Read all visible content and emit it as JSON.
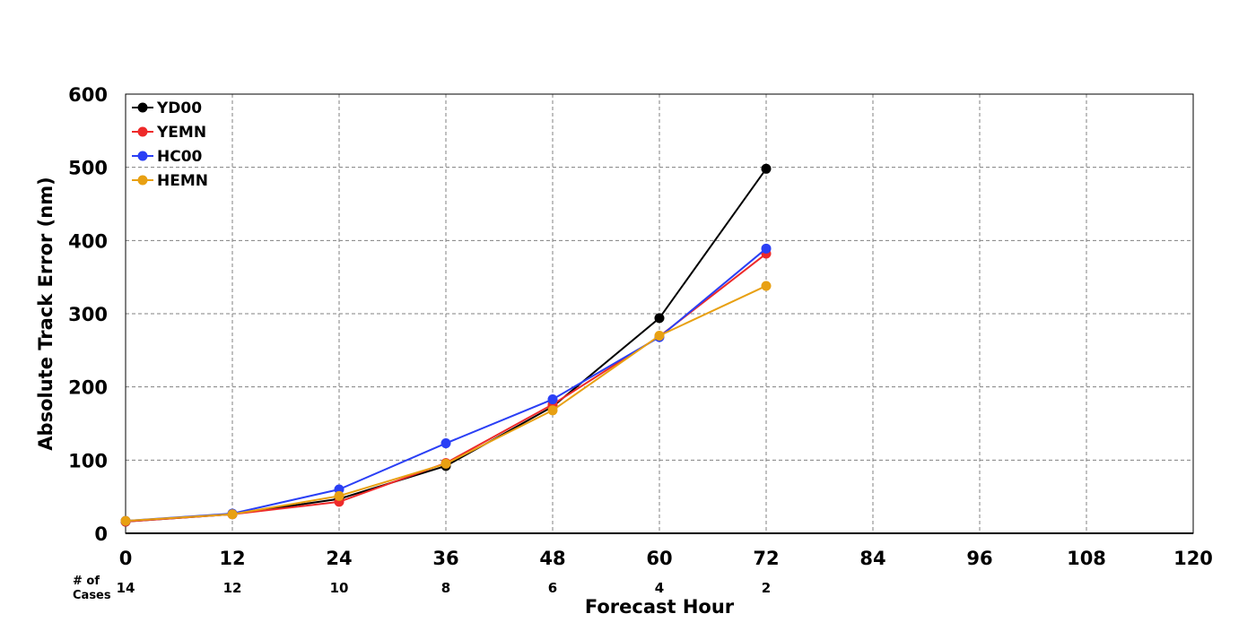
{
  "chart_data": {
    "type": "line",
    "xlabel": "Forecast Hour",
    "ylabel": "Absolute Track Error (nm)",
    "xlim": [
      0,
      120
    ],
    "ylim": [
      0,
      600
    ],
    "x_ticks": [
      0,
      12,
      24,
      36,
      48,
      60,
      72,
      84,
      96,
      108,
      120
    ],
    "y_ticks": [
      0,
      100,
      200,
      300,
      400,
      500,
      600
    ],
    "grid": true,
    "legend_position": "top-left",
    "cases_title_line1": "# of",
    "cases_title_line2": "Cases",
    "cases": [
      {
        "x": 0,
        "n": "14"
      },
      {
        "x": 12,
        "n": "12"
      },
      {
        "x": 24,
        "n": "10"
      },
      {
        "x": 36,
        "n": "8"
      },
      {
        "x": 48,
        "n": "6"
      },
      {
        "x": 60,
        "n": "4"
      },
      {
        "x": 72,
        "n": "2"
      }
    ],
    "x": [
      0,
      12,
      24,
      36,
      48,
      60,
      72
    ],
    "series": [
      {
        "name": "YD00",
        "color": "#000000",
        "values": [
          16,
          26,
          47,
          92,
          173,
          294,
          498
        ]
      },
      {
        "name": "YEMN",
        "color": "#ee2a2a",
        "values": [
          16,
          26,
          43,
          96,
          176,
          269,
          382
        ]
      },
      {
        "name": "HC00",
        "color": "#2a3ff5",
        "values": [
          17,
          27,
          60,
          123,
          183,
          268,
          389
        ]
      },
      {
        "name": "HEMN",
        "color": "#e8a012",
        "values": [
          17,
          26,
          51,
          95,
          168,
          270,
          338
        ]
      }
    ]
  }
}
